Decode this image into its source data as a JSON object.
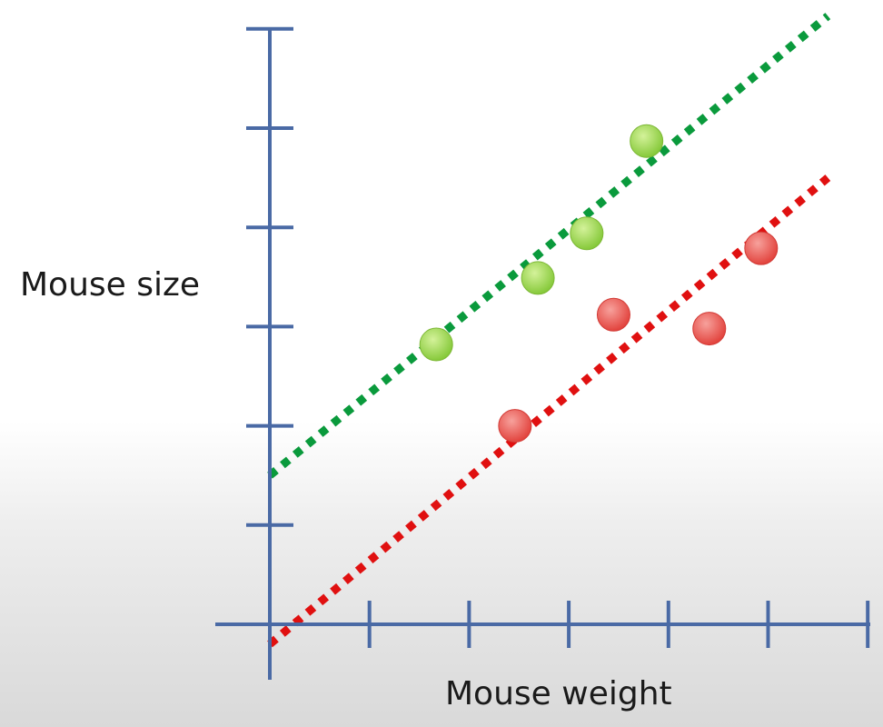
{
  "chart_data": {
    "type": "scatter",
    "xlabel": "Mouse weight",
    "ylabel": "Mouse size",
    "xlim": [
      0,
      6
    ],
    "ylim": [
      0,
      6
    ],
    "x_ticks": [
      1,
      2,
      3,
      4,
      5,
      6
    ],
    "y_ticks": [
      1,
      2,
      3,
      4,
      5,
      6
    ],
    "grid": false,
    "series": [
      {
        "color": "#8fd13f",
        "points": [
          {
            "x": 1.67,
            "y": 2.82
          },
          {
            "x": 2.69,
            "y": 3.49
          },
          {
            "x": 3.18,
            "y": 3.94
          },
          {
            "x": 3.78,
            "y": 4.87
          }
        ],
        "fit_line": {
          "x": [
            0,
            5.6
          ],
          "y": [
            1.5,
            6.13
          ],
          "color": "#0a9a3c",
          "style": "dotted"
        }
      },
      {
        "color": "#e8403c",
        "points": [
          {
            "x": 2.46,
            "y": 2.0
          },
          {
            "x": 3.45,
            "y": 3.12
          },
          {
            "x": 4.41,
            "y": 2.98
          },
          {
            "x": 4.93,
            "y": 3.79
          }
        ],
        "fit_line": {
          "x": [
            0,
            5.6
          ],
          "y": [
            -0.2,
            4.5
          ],
          "color": "#e01010",
          "style": "dotted"
        }
      }
    ]
  }
}
